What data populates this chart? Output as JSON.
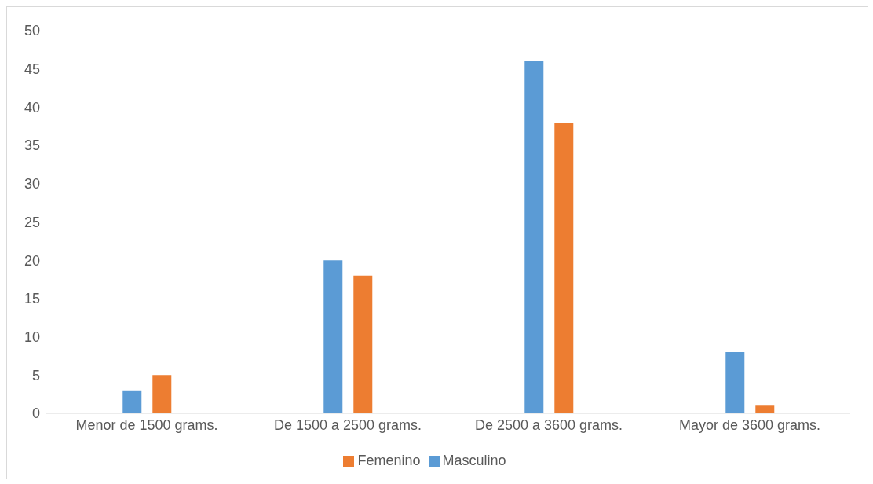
{
  "chart_data": {
    "type": "bar",
    "categories": [
      "Menor de 1500 grams.",
      "De 1500 a 2500 grams.",
      "De 2500 a 3600 grams.",
      "Mayor de 3600 grams."
    ],
    "series": [
      {
        "name": "Masculino",
        "color": "#5b9bd5",
        "values": [
          3,
          20,
          46,
          8
        ]
      },
      {
        "name": "Femenino",
        "color": "#ed7d31",
        "values": [
          5,
          18,
          38,
          1
        ]
      }
    ],
    "ylim": [
      0,
      50
    ],
    "yticks": [
      0,
      5,
      10,
      15,
      20,
      25,
      30,
      35,
      40,
      45,
      50
    ],
    "legend": "bottom"
  }
}
